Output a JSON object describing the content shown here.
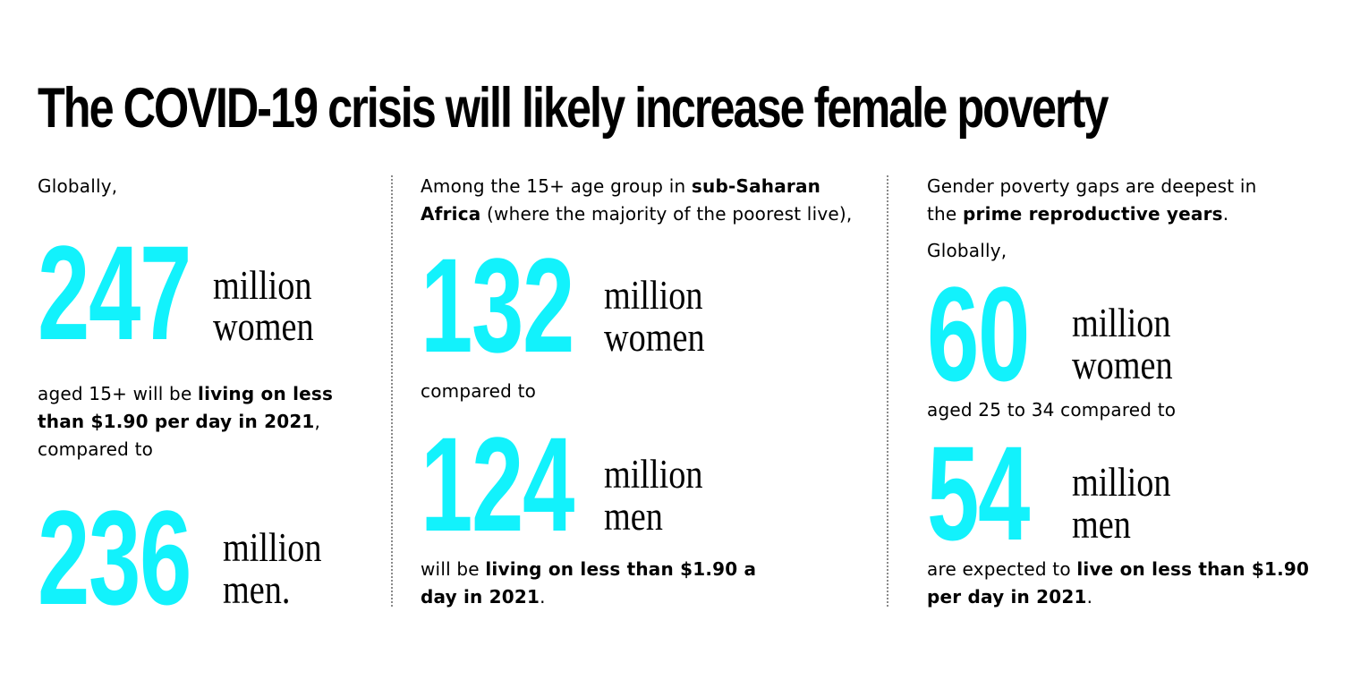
{
  "title": "The COVID-19 crisis will likely increase female poverty",
  "colors": {
    "highlight": "#12f2fc",
    "text": "#000000",
    "divider": "#8a8a8a"
  },
  "col1": {
    "intro": "Globally,",
    "stat1": {
      "number": "247",
      "line1": "million",
      "line2": "women"
    },
    "mid": {
      "l1a": "aged 15+ will be ",
      "l1b": "living on less",
      "l2b": "than $1.90 per day in 2021",
      "l2c": ",",
      "l3": "compared to"
    },
    "stat2": {
      "number": "236",
      "line1": "million",
      "line2": "men."
    }
  },
  "col2": {
    "intro": {
      "l1a": "Among the 15+ age group in ",
      "l1b": "sub-Saharan",
      "l2b": "Africa",
      "l2c": " (where the majority of the poorest live),"
    },
    "stat1": {
      "number": "132",
      "line1": "million",
      "line2": "women"
    },
    "mid": "compared to",
    "stat2": {
      "number": "124",
      "line1": "million",
      "line2": "men"
    },
    "outro": {
      "l1a": "will be ",
      "l1b": "living on less than $1.90 a",
      "l2b": "day in 2021",
      "l2c": "."
    }
  },
  "col3": {
    "intro": {
      "l1": "Gender poverty gaps are deepest in",
      "l2a": "the ",
      "l2b": "prime reproductive years",
      "l2c": ".",
      "l3": "Globally,"
    },
    "stat1": {
      "number": "60",
      "line1": "million",
      "line2": "women"
    },
    "mid": "aged 25 to 34 compared to",
    "stat2": {
      "number": "54",
      "line1": "million",
      "line2": "men"
    },
    "outro": {
      "l1a": "are expected to ",
      "l1b": "live on less than $1.90",
      "l2b": "per day in 2021",
      "l2c": "."
    }
  }
}
